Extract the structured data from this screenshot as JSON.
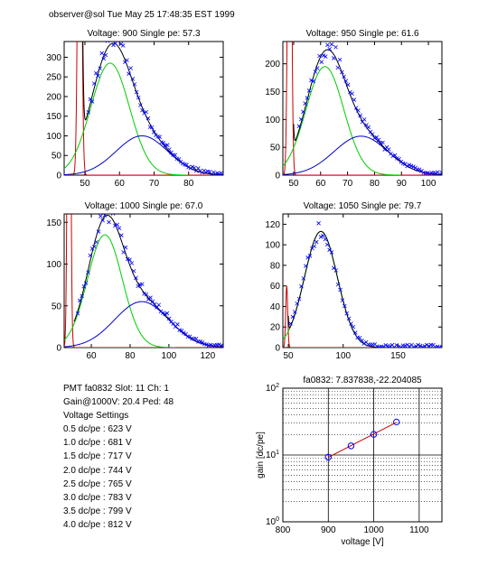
{
  "header": "observer@sol  Tue May 25 17:48:35 EST 1999",
  "info": {
    "line1": "PMT fa0832 Slot: 11 Ch: 1",
    "line2": "Gain@1000V: 20.4 Ped: 48",
    "line3": "Voltage Settings",
    "settings": [
      "0.5 dc/pe : 623 V",
      "1.0 dc/pe : 681 V",
      "1.5 dc/pe : 717 V",
      "2.0 dc/pe : 744 V",
      "2.5 dc/pe : 765 V",
      "3.0 dc/pe : 783 V",
      "3.5 dc/pe : 799 V",
      "4.0 dc/pe : 812 V"
    ]
  },
  "colors": {
    "data": "#0000ff",
    "total": "#000000",
    "signal": "#00cc00",
    "multi": "#0000cc",
    "ped": "#cc0000",
    "fitline": "#cc0000"
  },
  "chart_data": [
    {
      "type": "scatter",
      "title": "Voltage: 900 Single pe: 57.3",
      "xlim": [
        44,
        90
      ],
      "ylim": [
        0,
        340
      ],
      "xticks": [
        50,
        60,
        70,
        80
      ],
      "yticks": [
        0,
        50,
        100,
        150,
        200,
        250,
        300
      ],
      "pedestal": {
        "center": 48.5,
        "width": 0.5,
        "height": 1200
      },
      "signal": {
        "mean": 57.3,
        "sigma": 5.6,
        "amp": 285
      },
      "multi": {
        "mean": 66.5,
        "sigma": 7.5,
        "amp": 100
      },
      "scatter_start": 51
    },
    {
      "type": "scatter",
      "title": "Voltage: 950 Single pe: 61.6",
      "xlim": [
        46,
        105
      ],
      "ylim": [
        0,
        240
      ],
      "xticks": [
        50,
        60,
        70,
        80,
        90,
        100
      ],
      "yticks": [
        0,
        50,
        100,
        150,
        200
      ],
      "pedestal": {
        "center": 48.5,
        "width": 0.6,
        "height": 900
      },
      "signal": {
        "mean": 61.6,
        "sigma": 7.0,
        "amp": 195
      },
      "multi": {
        "mean": 75,
        "sigma": 10,
        "amp": 70
      },
      "scatter_start": 52
    },
    {
      "type": "scatter",
      "title": "Voltage: 1000 Single pe: 67.0",
      "xlim": [
        46,
        128
      ],
      "ylim": [
        0,
        160
      ],
      "xticks": [
        60,
        80,
        100,
        120
      ],
      "yticks": [
        0,
        50,
        100,
        150
      ],
      "pedestal": {
        "center": 48.5,
        "width": 0.7,
        "height": 700
      },
      "signal": {
        "mean": 67.0,
        "sigma": 9.0,
        "amp": 135
      },
      "multi": {
        "mean": 86,
        "sigma": 14,
        "amp": 55
      },
      "scatter_start": 53
    },
    {
      "type": "scatter",
      "title": "Voltage: 1050 Single pe: 79.7",
      "xlim": [
        45,
        190
      ],
      "ylim": [
        0,
        130
      ],
      "xticks": [
        50,
        100,
        150
      ],
      "yticks": [
        0,
        20,
        40,
        60,
        80,
        100,
        120
      ],
      "pedestal": {
        "center": 48.5,
        "width": 0.9,
        "height": 60
      },
      "signal": {
        "mean": 79.7,
        "sigma": 15.0,
        "amp": 113
      },
      "multi": null,
      "scatter_start": 52
    },
    {
      "type": "line",
      "title": "fa0832: 7.837838,-22.204085",
      "xlabel": "voltage [V]",
      "ylabel": "gain [dc/pe]",
      "xlim": [
        800,
        1150
      ],
      "ylim_log": [
        1,
        100
      ],
      "xticks": [
        800,
        900,
        1000,
        1100
      ],
      "yticks": [
        {
          "value": 1,
          "base": "10",
          "exp": "0"
        },
        {
          "value": 10,
          "base": "10",
          "exp": "1"
        },
        {
          "value": 100,
          "base": "10",
          "exp": "2"
        }
      ],
      "points": {
        "x": [
          900,
          950,
          1000,
          1050
        ],
        "y": [
          9.3,
          13.7,
          20.4,
          31.2
        ]
      },
      "fit_x": [
        900,
        1050
      ]
    }
  ]
}
